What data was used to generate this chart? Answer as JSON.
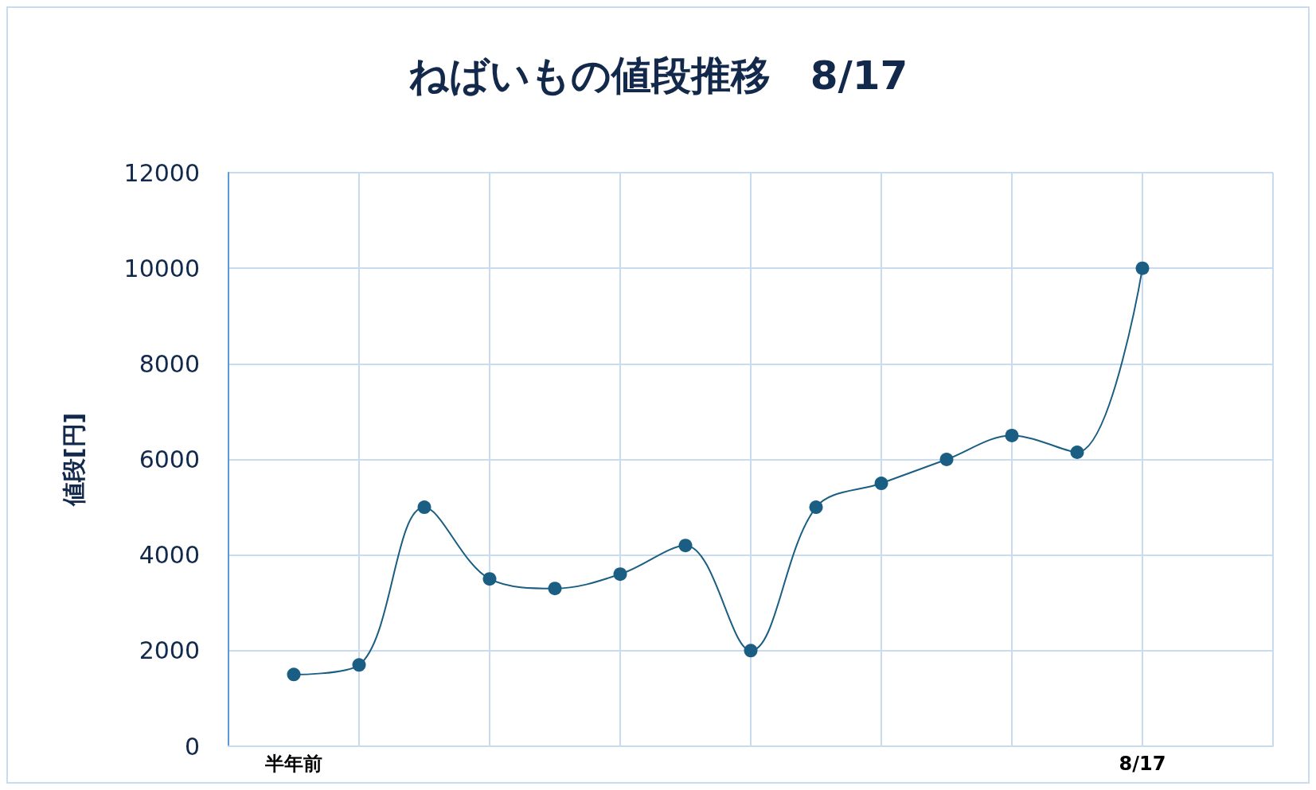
{
  "chart_data": {
    "type": "line",
    "title": "ねばいもの値段推移　8/17",
    "ylabel": "値段[円]",
    "categories": [
      null,
      "半年前",
      null,
      null,
      null,
      null,
      null,
      null,
      null,
      null,
      null,
      null,
      null,
      null,
      "8/17",
      null,
      null
    ],
    "series": [
      {
        "color": "#1b5e83",
        "values": [
          null,
          1500,
          1700,
          5000,
          3500,
          3300,
          3600,
          4200,
          2000,
          5000,
          5500,
          6000,
          6500,
          6150,
          10000,
          null,
          null
        ]
      }
    ],
    "ylim": [
      0,
      12000
    ],
    "yticks": [
      0,
      2000,
      4000,
      6000,
      8000,
      10000,
      12000
    ],
    "grid": true,
    "marker": "circle",
    "line_style": "solid"
  }
}
